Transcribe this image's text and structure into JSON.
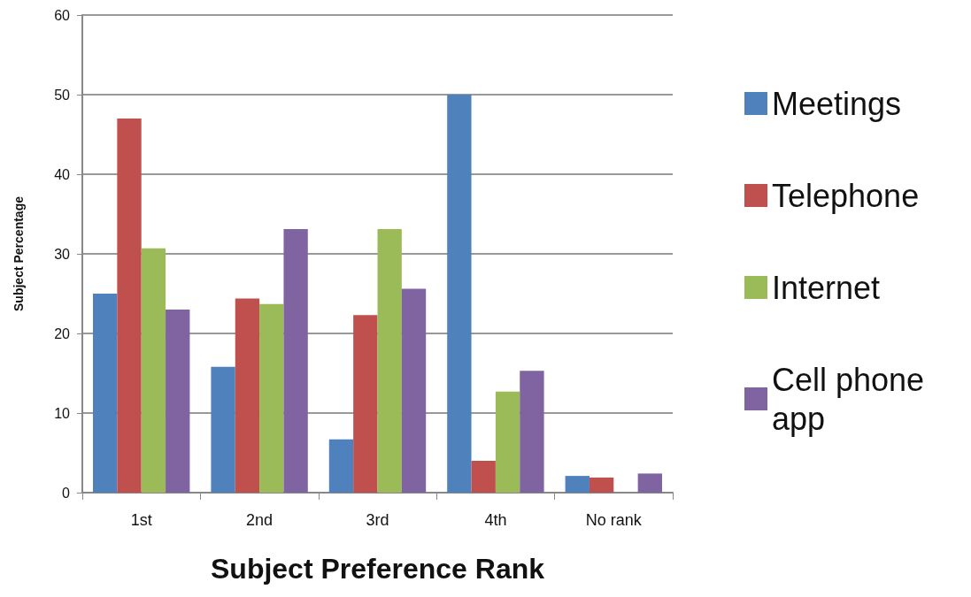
{
  "chart_data": {
    "type": "bar",
    "xlabel": "Subject Preference Rank",
    "ylabel": "Subject Percentage",
    "categories": [
      "1st",
      "2nd",
      "3rd",
      "4th",
      "No rank"
    ],
    "series": [
      {
        "name": "Meetings",
        "color": "#4f81bd",
        "values": [
          25,
          15.8,
          6.7,
          50,
          2.1
        ]
      },
      {
        "name": "Telephone",
        "color": "#c0504d",
        "values": [
          47,
          24.4,
          22.3,
          4,
          1.9
        ]
      },
      {
        "name": "Internet",
        "color": "#9bbb59",
        "values": [
          30.7,
          23.7,
          33.1,
          12.7,
          0
        ]
      },
      {
        "name": "Cell phone app",
        "color": "#8064a2",
        "values": [
          23,
          33.1,
          25.6,
          15.3,
          2.4
        ]
      }
    ],
    "ylim": [
      0,
      60
    ],
    "yticks": [
      0,
      10,
      20,
      30,
      40,
      50,
      60
    ],
    "grid": "y",
    "legend": "right"
  }
}
